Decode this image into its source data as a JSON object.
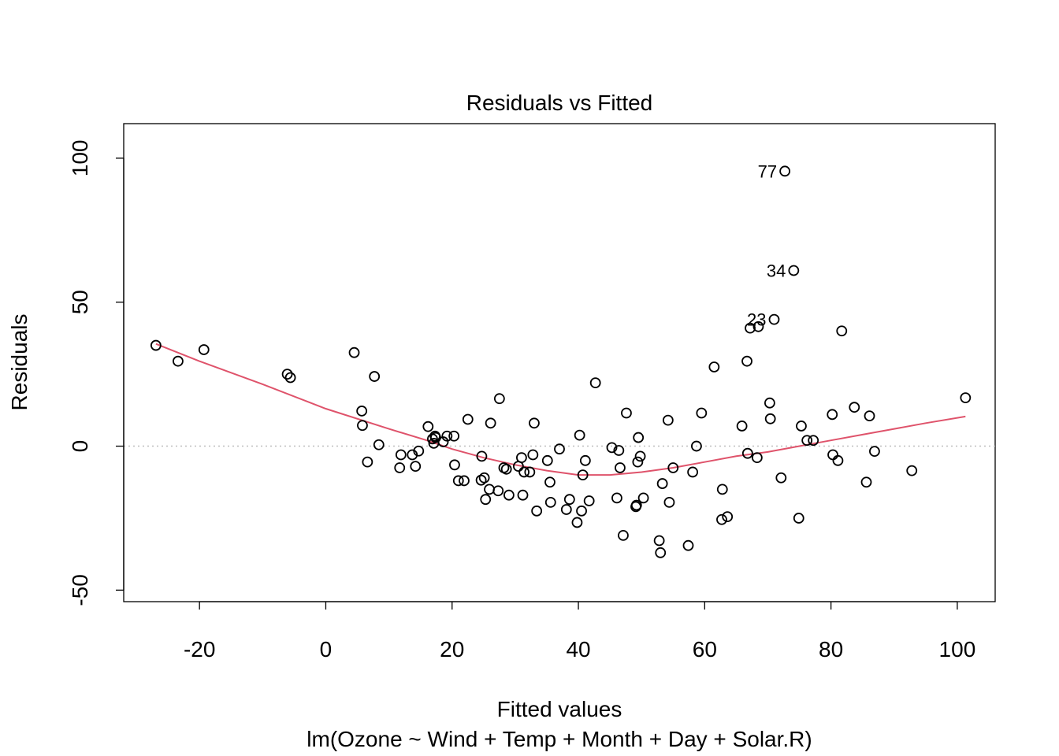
{
  "chart_data": {
    "type": "scatter",
    "title": "Residuals vs Fitted",
    "xlabel": "Fitted values",
    "subtitle": "lm(Ozone ~ Wind + Temp + Month + Day + Solar.R)",
    "ylabel": "Residuals",
    "xlim": [
      -32,
      106
    ],
    "ylim": [
      -54,
      112
    ],
    "x_ticks": [
      -20,
      0,
      20,
      40,
      60,
      80,
      100
    ],
    "x_tick_labels": [
      "-20",
      "0",
      "20",
      "40",
      "60",
      "80",
      "100"
    ],
    "y_ticks": [
      -50,
      0,
      50,
      100
    ],
    "y_tick_labels": [
      "-50",
      "0",
      "50",
      "100"
    ],
    "reference_line_y": 0,
    "colors": {
      "points": "#000000",
      "smooth": "#DF536B",
      "reference": "#BEBEBE"
    },
    "points": [
      [
        -26.9,
        35
      ],
      [
        -23.4,
        29.5
      ],
      [
        -19.3,
        33.5
      ],
      [
        -6.1,
        25
      ],
      [
        -5.6,
        23.8
      ],
      [
        4.5,
        32.5
      ],
      [
        5.7,
        12.2
      ],
      [
        5.8,
        7.2
      ],
      [
        6.6,
        -5.5
      ],
      [
        7.7,
        24.2
      ],
      [
        8.4,
        0.5
      ],
      [
        11.7,
        -7.5
      ],
      [
        11.9,
        -3
      ],
      [
        13.7,
        -3
      ],
      [
        14.2,
        -7
      ],
      [
        14.7,
        -1.7
      ],
      [
        16.2,
        6.8
      ],
      [
        16.9,
        2.5
      ],
      [
        17.1,
        1
      ],
      [
        17.3,
        3.5
      ],
      [
        17.4,
        3
      ],
      [
        18.6,
        1.5
      ],
      [
        19.2,
        3.5
      ],
      [
        20.3,
        3.5
      ],
      [
        20.4,
        -6.5
      ],
      [
        21,
        -12
      ],
      [
        21.9,
        -12
      ],
      [
        22.5,
        9.3
      ],
      [
        24.6,
        -11.8
      ],
      [
        24.7,
        -3.5
      ],
      [
        25.1,
        -11
      ],
      [
        25.3,
        -18.5
      ],
      [
        25.9,
        -15
      ],
      [
        26.1,
        8
      ],
      [
        27.3,
        -15.5
      ],
      [
        27.5,
        16.5
      ],
      [
        28.2,
        -7.5
      ],
      [
        28.6,
        -8
      ],
      [
        29,
        -17
      ],
      [
        30.5,
        -7
      ],
      [
        31,
        -4
      ],
      [
        31.2,
        -17
      ],
      [
        31.4,
        -9
      ],
      [
        32.3,
        -9
      ],
      [
        32.8,
        -3
      ],
      [
        33,
        8
      ],
      [
        33.4,
        -22.5
      ],
      [
        35.1,
        -5
      ],
      [
        35.5,
        -12.5
      ],
      [
        35.6,
        -19.5
      ],
      [
        37,
        -1
      ],
      [
        38.1,
        -22
      ],
      [
        38.6,
        -18.5
      ],
      [
        39.8,
        -26.5
      ],
      [
        40.2,
        3.8
      ],
      [
        40.5,
        -22.5
      ],
      [
        40.7,
        -10
      ],
      [
        41.1,
        -5
      ],
      [
        41.7,
        -19
      ],
      [
        42.7,
        22
      ],
      [
        45.3,
        -0.5
      ],
      [
        46.1,
        -18
      ],
      [
        46.4,
        -1.5
      ],
      [
        46.6,
        -7.5
      ],
      [
        47.1,
        -31
      ],
      [
        47.6,
        11.5
      ],
      [
        49.1,
        -21
      ],
      [
        49.2,
        -20.5
      ],
      [
        49.4,
        -5.5
      ],
      [
        49.5,
        3
      ],
      [
        49.8,
        -3.5
      ],
      [
        50.3,
        -18
      ],
      [
        52.8,
        -32.8
      ],
      [
        53,
        -37
      ],
      [
        53.3,
        -13
      ],
      [
        54.2,
        9
      ],
      [
        54.4,
        -19.5
      ],
      [
        55,
        -7.5
      ],
      [
        57.4,
        -34.5
      ],
      [
        58.1,
        -9
      ],
      [
        58.7,
        0
      ],
      [
        59.5,
        11.5
      ],
      [
        61.5,
        27.5
      ],
      [
        62.7,
        -25.5
      ],
      [
        62.8,
        -15
      ],
      [
        63.6,
        -24.5
      ],
      [
        65.9,
        7
      ],
      [
        66.7,
        29.5
      ],
      [
        66.8,
        -2.5
      ],
      [
        67.2,
        41
      ],
      [
        68.3,
        -4
      ],
      [
        68.5,
        41.5
      ],
      [
        70.3,
        15
      ],
      [
        70.4,
        9.5
      ],
      [
        71,
        44
      ],
      [
        72.1,
        -11
      ],
      [
        72.7,
        95.5
      ],
      [
        74.1,
        61
      ],
      [
        74.9,
        -25
      ],
      [
        75.3,
        7
      ],
      [
        76.2,
        2
      ],
      [
        77.2,
        2
      ],
      [
        80.2,
        11
      ],
      [
        80.3,
        -3
      ],
      [
        81.1,
        -5
      ],
      [
        81.7,
        40
      ],
      [
        83.7,
        13.5
      ],
      [
        85.6,
        -12.5
      ],
      [
        86.1,
        10.5
      ],
      [
        86.9,
        -1.8
      ],
      [
        92.8,
        -8.5
      ],
      [
        101.3,
        16.8
      ]
    ],
    "labeled_points": [
      {
        "label": "77",
        "x": 72.7,
        "y": 95.5
      },
      {
        "label": "34",
        "x": 74.1,
        "y": 61
      },
      {
        "label": "23",
        "x": 71,
        "y": 44
      }
    ],
    "smooth": [
      [
        -26.9,
        35.5
      ],
      [
        -20,
        29.5
      ],
      [
        -10,
        21.5
      ],
      [
        0,
        13
      ],
      [
        10,
        6
      ],
      [
        16,
        2
      ],
      [
        20,
        -1
      ],
      [
        25,
        -4
      ],
      [
        30,
        -6.5
      ],
      [
        35,
        -8.5
      ],
      [
        40,
        -10
      ],
      [
        45,
        -10
      ],
      [
        50,
        -9
      ],
      [
        55,
        -7.5
      ],
      [
        60,
        -5.5
      ],
      [
        65,
        -3.5
      ],
      [
        70,
        -2
      ],
      [
        75,
        0
      ],
      [
        80,
        2
      ],
      [
        85,
        4
      ],
      [
        90,
        6
      ],
      [
        95,
        8
      ],
      [
        101.3,
        10.3
      ]
    ]
  }
}
